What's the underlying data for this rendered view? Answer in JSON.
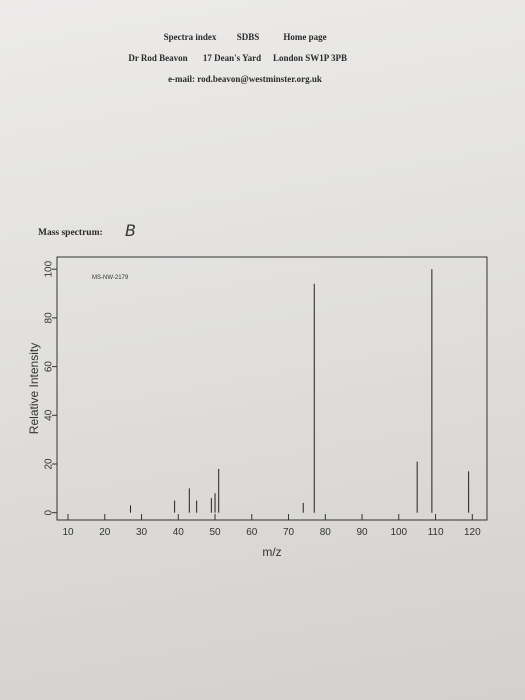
{
  "header": {
    "links": [
      "Spectra index",
      "SDBS",
      "Home page"
    ],
    "address": [
      "Dr Rod Beavon",
      "17 Dean's Yard",
      "London SW1P 3PB"
    ],
    "email": "e-mail: rod.beavon@westminster.org.uk"
  },
  "section_label": "Mass spectrum:",
  "handwritten": "B",
  "chart_data": {
    "type": "stem",
    "annotation": "MS-NW-2179",
    "x_label": "m/z",
    "y_label": "Relative Intensity",
    "x": [
      27,
      39,
      43,
      45,
      49,
      50,
      51,
      74,
      77,
      105,
      109,
      119
    ],
    "values": [
      3,
      5,
      10,
      5,
      6,
      8,
      18,
      4,
      94,
      21,
      100,
      17
    ],
    "color": "#222222",
    "xlim": [
      7,
      124
    ],
    "ylim": [
      -3,
      105
    ],
    "xticks": [
      10,
      20,
      30,
      40,
      50,
      60,
      70,
      80,
      90,
      100,
      110,
      120
    ],
    "yticks": [
      0,
      20,
      40,
      60,
      80,
      100
    ]
  }
}
